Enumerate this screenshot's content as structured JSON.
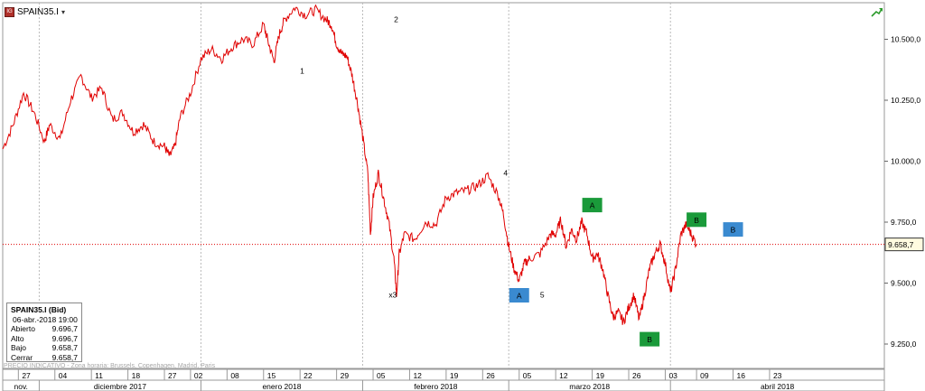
{
  "header": {
    "symbol": "SPAIN35.I",
    "caret": "▾",
    "logo_text": "IG"
  },
  "info_box": {
    "title": "SPAIN35.I (Bid)",
    "datetime": "06-abr.-2018 19:00",
    "rows": [
      {
        "label": "Abierto",
        "value": "9.696,7"
      },
      {
        "label": "Alto",
        "value": "9.696,7"
      },
      {
        "label": "Bajo",
        "value": "9.658,7"
      },
      {
        "label": "Cerrar",
        "value": "9.658,7"
      }
    ]
  },
  "footer_note": "PRECIO INDICATIVO - Zona horaria: Brussels, Copenhagen, Madrid, Paris",
  "colors": {
    "price_line": "#e00000",
    "green_box": "#1a9a3a",
    "blue_box": "#3a8ad0",
    "grid": "#cccccc"
  },
  "icons": {
    "trend": "trend-up-arrow-icon"
  },
  "chart_data": {
    "type": "line",
    "title": "",
    "xlabel": "",
    "ylabel": "",
    "ylim": [
      9150,
      10650
    ],
    "y_ticks": [
      {
        "value": 9250,
        "label": "9.250,0"
      },
      {
        "value": 9500,
        "label": "9.500,0"
      },
      {
        "value": 9750,
        "label": "9.750,0"
      },
      {
        "value": 10000,
        "label": "10.000,0"
      },
      {
        "value": 10250,
        "label": "10.250,0"
      },
      {
        "value": 10500,
        "label": "10.500,0"
      }
    ],
    "last_price": {
      "value": 9658.7,
      "label": "9.658,7"
    },
    "day_ticks": [
      {
        "day": 0,
        "label": "27"
      },
      {
        "day": 7,
        "label": "04"
      },
      {
        "day": 14,
        "label": "11"
      },
      {
        "day": 21,
        "label": "18"
      },
      {
        "day": 28,
        "label": "27"
      },
      {
        "day": 33,
        "label": "02"
      },
      {
        "day": 40,
        "label": "08"
      },
      {
        "day": 47,
        "label": "15"
      },
      {
        "day": 54,
        "label": "22"
      },
      {
        "day": 61,
        "label": "29"
      },
      {
        "day": 68,
        "label": "05"
      },
      {
        "day": 75,
        "label": "12"
      },
      {
        "day": 82,
        "label": "19"
      },
      {
        "day": 89,
        "label": "26"
      },
      {
        "day": 96,
        "label": "05"
      },
      {
        "day": 103,
        "label": "12"
      },
      {
        "day": 110,
        "label": "19"
      },
      {
        "day": 117,
        "label": "26"
      },
      {
        "day": 124,
        "label": "03"
      },
      {
        "day": 130,
        "label": "09"
      },
      {
        "day": 137,
        "label": "16"
      },
      {
        "day": 144,
        "label": "23"
      }
    ],
    "months": [
      {
        "start": -3,
        "end": 4,
        "label": "nov."
      },
      {
        "start": 4,
        "end": 35,
        "label": "diciembre 2017"
      },
      {
        "start": 35,
        "end": 66,
        "label": "enero 2018"
      },
      {
        "start": 66,
        "end": 94,
        "label": "febrero 2018"
      },
      {
        "start": 94,
        "end": 125,
        "label": "marzo 2018"
      },
      {
        "start": 125,
        "end": 166,
        "label": "abril 2018"
      }
    ],
    "xlim": [
      -3,
      166
    ],
    "series": [
      {
        "points": [
          [
            -3,
            10050
          ],
          [
            -1,
            10150
          ],
          [
            1,
            10280
          ],
          [
            3,
            10200
          ],
          [
            5,
            10080
          ],
          [
            6,
            10150
          ],
          [
            8,
            10090
          ],
          [
            10,
            10250
          ],
          [
            12,
            10350
          ],
          [
            14,
            10260
          ],
          [
            16,
            10300
          ],
          [
            18,
            10170
          ],
          [
            20,
            10200
          ],
          [
            22,
            10120
          ],
          [
            24,
            10150
          ],
          [
            26,
            10080
          ],
          [
            28,
            10060
          ],
          [
            29,
            10020
          ],
          [
            30,
            10060
          ],
          [
            31,
            10180
          ],
          [
            33,
            10280
          ],
          [
            35,
            10420
          ],
          [
            37,
            10460
          ],
          [
            39,
            10420
          ],
          [
            41,
            10470
          ],
          [
            43,
            10500
          ],
          [
            45,
            10480
          ],
          [
            47,
            10560
          ],
          [
            48,
            10480
          ],
          [
            49,
            10410
          ],
          [
            50,
            10520
          ],
          [
            51,
            10580
          ],
          [
            53,
            10630
          ],
          [
            55,
            10600
          ],
          [
            57,
            10620
          ],
          [
            59,
            10580
          ],
          [
            60,
            10560
          ],
          [
            61,
            10480
          ],
          [
            62,
            10440
          ],
          [
            63,
            10430
          ],
          [
            64,
            10350
          ],
          [
            65,
            10240
          ],
          [
            66,
            10100
          ],
          [
            67,
            9950
          ],
          [
            67.5,
            9700
          ],
          [
            68,
            9850
          ],
          [
            69,
            9950
          ],
          [
            70,
            9850
          ],
          [
            71,
            9750
          ],
          [
            72,
            9600
          ],
          [
            72.5,
            9450
          ],
          [
            73,
            9620
          ],
          [
            74,
            9700
          ],
          [
            76,
            9680
          ],
          [
            78,
            9750
          ],
          [
            80,
            9740
          ],
          [
            82,
            9850
          ],
          [
            84,
            9870
          ],
          [
            86,
            9880
          ],
          [
            88,
            9900
          ],
          [
            90,
            9940
          ],
          [
            92,
            9860
          ],
          [
            93,
            9780
          ],
          [
            94,
            9650
          ],
          [
            95,
            9560
          ],
          [
            96,
            9510
          ],
          [
            97,
            9580
          ],
          [
            98,
            9600
          ],
          [
            100,
            9620
          ],
          [
            102,
            9700
          ],
          [
            103,
            9700
          ],
          [
            104,
            9760
          ],
          [
            105,
            9650
          ],
          [
            106,
            9720
          ],
          [
            107,
            9680
          ],
          [
            108,
            9750
          ],
          [
            109,
            9700
          ],
          [
            110,
            9600
          ],
          [
            111,
            9620
          ],
          [
            112,
            9560
          ],
          [
            113,
            9450
          ],
          [
            114,
            9360
          ],
          [
            115,
            9380
          ],
          [
            116,
            9340
          ],
          [
            117,
            9400
          ],
          [
            118,
            9450
          ],
          [
            119,
            9350
          ],
          [
            120,
            9450
          ],
          [
            121,
            9560
          ],
          [
            122,
            9620
          ],
          [
            123,
            9660
          ],
          [
            124,
            9580
          ],
          [
            125,
            9460
          ],
          [
            126,
            9560
          ],
          [
            127,
            9700
          ],
          [
            128,
            9740
          ],
          [
            129,
            9700
          ],
          [
            130,
            9658.7
          ]
        ]
      }
    ],
    "annotations": [
      {
        "day": 54,
        "value": 10360,
        "label": "1"
      },
      {
        "day": 72,
        "value": 10570,
        "label": "2"
      },
      {
        "day": 71,
        "value": 9440,
        "label": "x3"
      },
      {
        "day": 93,
        "value": 9940,
        "label": "4"
      },
      {
        "day": 100,
        "value": 9440,
        "label": "5"
      }
    ],
    "wave_boxes": [
      {
        "day": 96,
        "value": 9450,
        "label": "A",
        "color": "blue"
      },
      {
        "day": 110,
        "value": 9820,
        "label": "A",
        "color": "green"
      },
      {
        "day": 121,
        "value": 9270,
        "label": "B",
        "color": "green"
      },
      {
        "day": 130,
        "value": 9760,
        "label": "B",
        "color": "green"
      },
      {
        "day": 137,
        "value": 9720,
        "label": "B",
        "color": "blue"
      }
    ]
  }
}
